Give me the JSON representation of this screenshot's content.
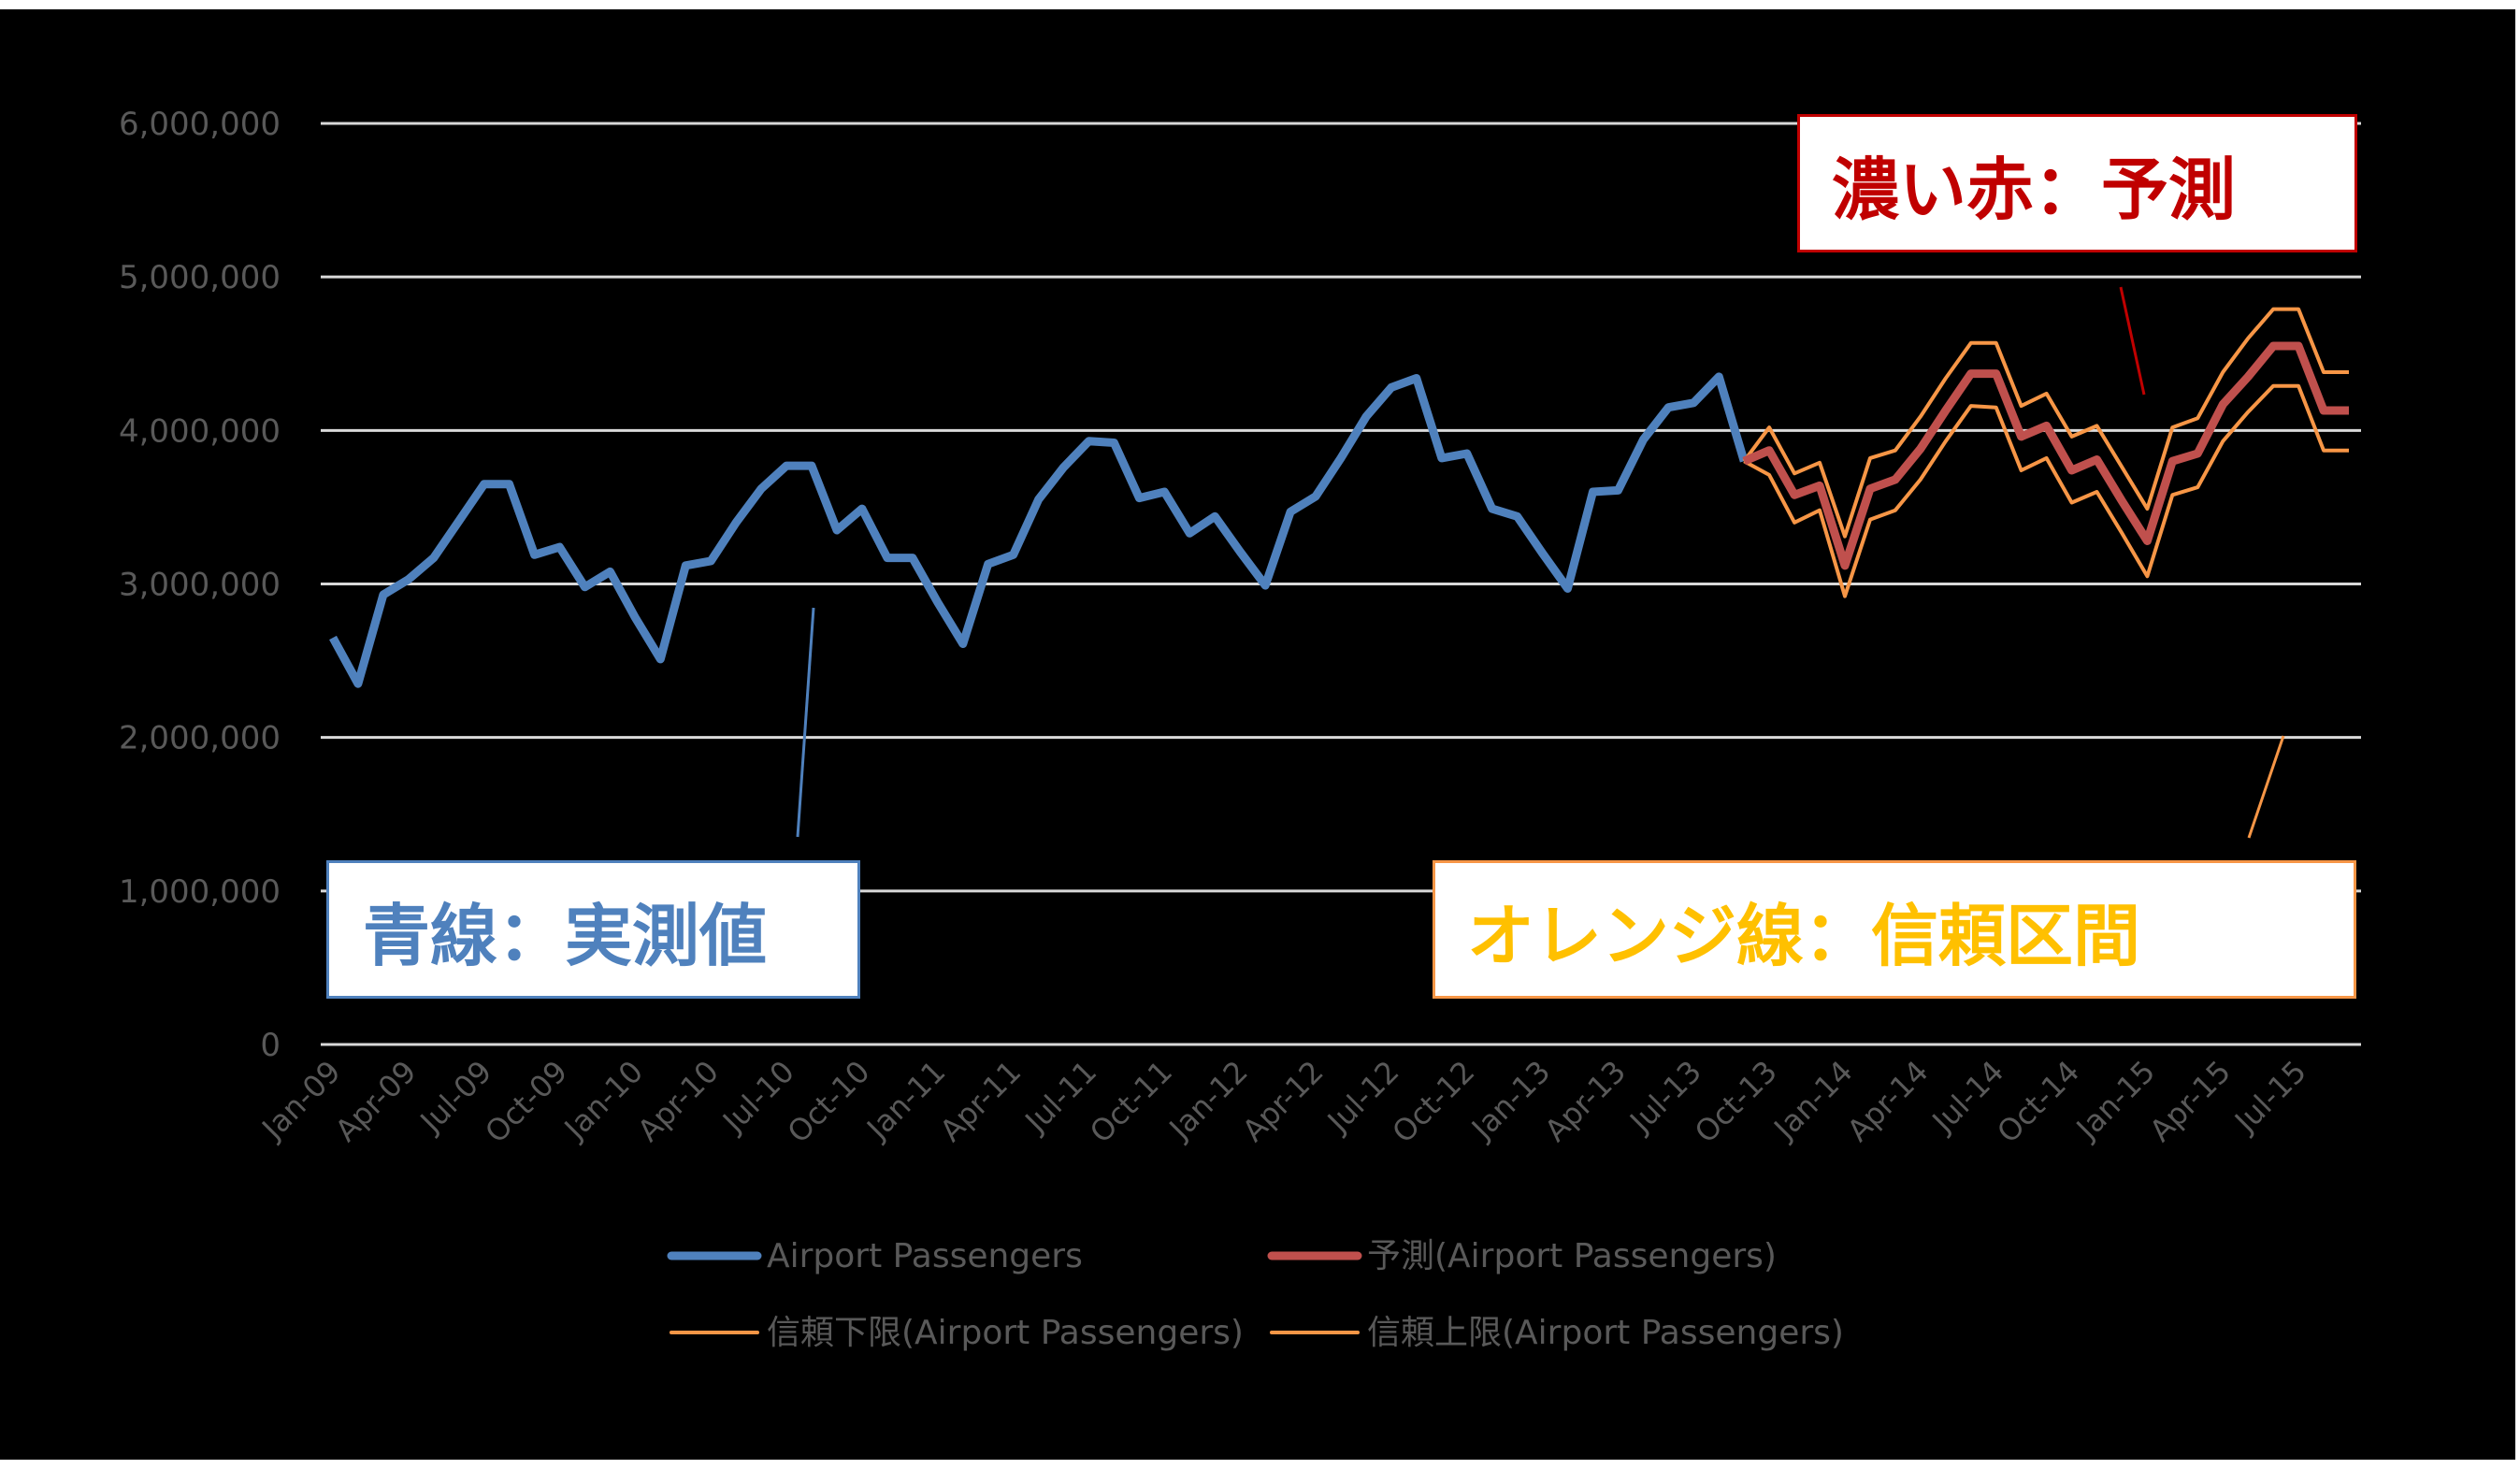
{
  "chart_data": {
    "type": "line",
    "title": "",
    "xlabel": "",
    "ylabel": "",
    "ylim": [
      0,
      6000000
    ],
    "yticks": [
      0,
      1000000,
      2000000,
      3000000,
      4000000,
      5000000,
      6000000
    ],
    "ytick_labels": [
      "0",
      "1,000,000",
      "2,000,000",
      "3,000,000",
      "4,000,000",
      "5,000,000",
      "6,000,000"
    ],
    "grid": true,
    "legend_position": "bottom",
    "x_start": "Jan-09",
    "x_end": "Sep-15",
    "xtick_labels": [
      "Jan-09",
      "Apr-09",
      "Jul-09",
      "Oct-09",
      "Jan-10",
      "Apr-10",
      "Jul-10",
      "Oct-10",
      "Jan-11",
      "Apr-11",
      "Jul-11",
      "Oct-11",
      "Jan-12",
      "Apr-12",
      "Jul-12",
      "Oct-12",
      "Jan-13",
      "Apr-13",
      "Jul-13",
      "Oct-13",
      "Jan-14",
      "Apr-14",
      "Jul-14",
      "Oct-14",
      "Jan-15",
      "Apr-15",
      "Jul-15"
    ],
    "series": [
      {
        "name": "Airport Passengers",
        "color": "#4f81bd",
        "start_index": 0,
        "values": [
          2650000,
          2350000,
          2930000,
          3030000,
          3170000,
          3410000,
          3650000,
          3650000,
          3190000,
          3240000,
          2980000,
          3080000,
          2780000,
          2510000,
          3120000,
          3150000,
          3400000,
          3620000,
          3770000,
          3770000,
          3350000,
          3490000,
          3170000,
          3170000,
          2880000,
          2610000,
          3130000,
          3190000,
          3550000,
          3760000,
          3930000,
          3920000,
          3560000,
          3600000,
          3330000,
          3440000,
          3210000,
          2990000,
          3470000,
          3570000,
          3820000,
          4090000,
          4280000,
          4340000,
          3820000,
          3850000,
          3490000,
          3440000,
          3200000,
          2970000,
          3600000,
          3610000,
          3940000,
          4150000,
          4180000,
          4350000,
          3800000
        ]
      },
      {
        "name": "予測(Airport Passengers)",
        "color": "#c0504d",
        "start_index": 56,
        "values": [
          3800000,
          3870000,
          3580000,
          3640000,
          3120000,
          3620000,
          3680000,
          3880000,
          4130000,
          4370000,
          4370000,
          3960000,
          4030000,
          3740000,
          3810000,
          3540000,
          3280000,
          3800000,
          3850000,
          4170000,
          4350000,
          4550000,
          4550000,
          4130000,
          4130000
        ]
      },
      {
        "name": "信頼下限(Airport Passengers)",
        "color": "#f79646",
        "start_index": 56,
        "values": [
          3800000,
          3710000,
          3400000,
          3480000,
          2920000,
          3420000,
          3480000,
          3680000,
          3930000,
          4160000,
          4150000,
          3740000,
          3820000,
          3530000,
          3600000,
          3330000,
          3050000,
          3580000,
          3630000,
          3930000,
          4120000,
          4290000,
          4290000,
          3870000,
          3870000
        ]
      },
      {
        "name": "信頼上限(Airport Passengers)",
        "color": "#f79646",
        "start_index": 56,
        "values": [
          3800000,
          4020000,
          3720000,
          3790000,
          3310000,
          3820000,
          3870000,
          4090000,
          4340000,
          4570000,
          4570000,
          4160000,
          4240000,
          3960000,
          4030000,
          3760000,
          3490000,
          4020000,
          4080000,
          4380000,
          4600000,
          4790000,
          4790000,
          4380000,
          4380000
        ]
      }
    ],
    "annotations": [
      {
        "text": "青線：実測値",
        "color": "#4f81bd"
      },
      {
        "text": "濃い赤：予測",
        "color": "#c00000"
      },
      {
        "text": "オレンジ線：信頼区間",
        "color": "#ffc000"
      }
    ]
  },
  "annotations": {
    "actual": "青線：実測値",
    "forecast": "濃い赤：予測",
    "interval": "オレンジ線：信頼区間"
  },
  "legend": {
    "items": [
      {
        "label": "Airport Passengers",
        "color": "#4f81bd",
        "width": 9
      },
      {
        "label": "予測(Airport Passengers)",
        "color": "#c0504d",
        "width": 9
      },
      {
        "label": "信頼下限(Airport Passengers)",
        "color": "#f79646",
        "width": 4
      },
      {
        "label": "信頼上限(Airport Passengers)",
        "color": "#f79646",
        "width": 4
      }
    ]
  },
  "colors": {
    "background": "#000000",
    "gridline": "#d9d9d9",
    "axis_text": "#595959"
  }
}
